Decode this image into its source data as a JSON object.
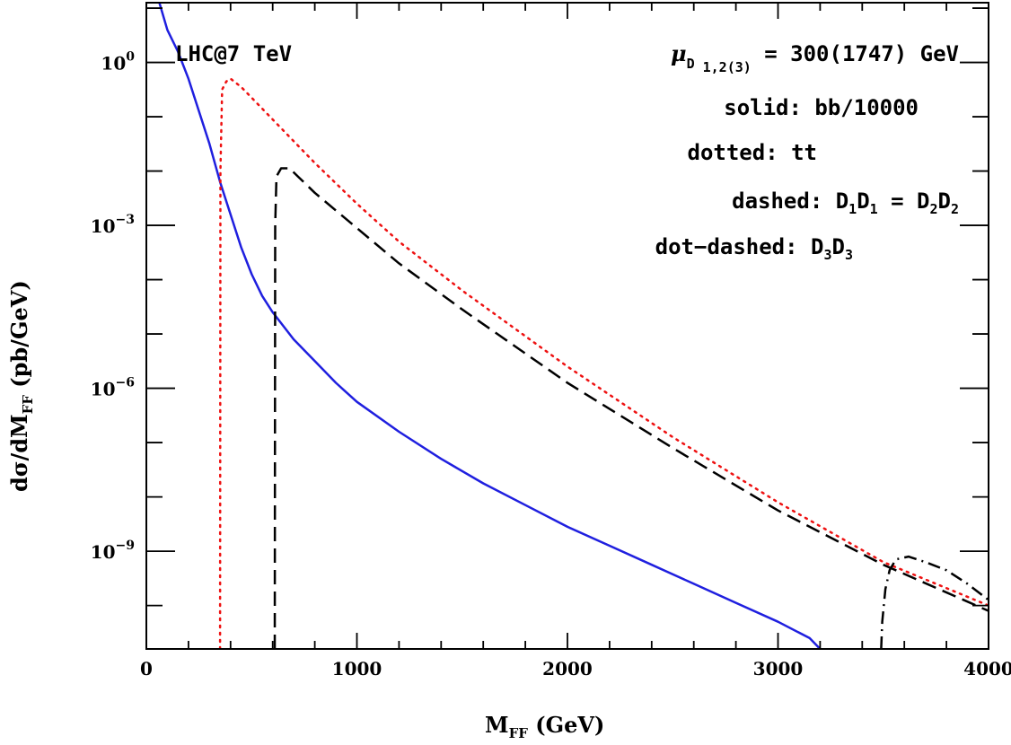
{
  "chart_data": {
    "type": "line",
    "xlabel_main": "M",
    "xlabel_sub": "FF",
    "xlabel_rest": " (GeV)",
    "ylabel_pre": "dσ/dM",
    "ylabel_sub": "FF",
    "ylabel_rest": " (pb/GeV)",
    "xlim": [
      0,
      4000
    ],
    "ylim_log10": [
      -10.8,
      1.1
    ],
    "x_ticks": [
      0,
      1000,
      2000,
      3000,
      4000
    ],
    "x_tick_labels": [
      "0",
      "1000",
      "2000",
      "3000",
      "4000"
    ],
    "y_ticks": [
      {
        "base": "10",
        "exp": "0",
        "log": 0
      },
      {
        "base": "10",
        "exp": "−3",
        "log": -3
      },
      {
        "base": "10",
        "exp": "−6",
        "log": -6
      },
      {
        "base": "10",
        "exp": "−9",
        "log": -9
      }
    ],
    "annotations": {
      "lhc": "LHC@7 TeV",
      "mu_symbol": "μ",
      "mu_sub_d": "D",
      "mu_sub_idx": " 1,2(3)",
      "mu_value": " = 300(1747) GeV",
      "solid": "solid: bb/10000",
      "dotted": "dotted: tt",
      "dashed_pre": "dashed: D",
      "dashed_s1": "1",
      "dashed_mid": "D",
      "dashed_s2": "1",
      "dashed_eq": " = D",
      "dashed_s3": "2",
      "dashed_mid2": "D",
      "dashed_s4": "2",
      "dotdashed_pre": "dot−dashed: D",
      "dotdashed_s1": "3",
      "dotdashed_mid": "D",
      "dotdashed_s2": "3"
    },
    "series": [
      {
        "style": "solid",
        "color": "#1f1fdf",
        "points": [
          [
            62,
            1.1
          ],
          [
            100,
            0.6
          ],
          [
            150,
            0.2
          ],
          [
            200,
            -0.3
          ],
          [
            250,
            -0.9
          ],
          [
            300,
            -1.5
          ],
          [
            350,
            -2.2
          ],
          [
            400,
            -2.8
          ],
          [
            450,
            -3.4
          ],
          [
            500,
            -3.9
          ],
          [
            550,
            -4.3
          ],
          [
            600,
            -4.6
          ],
          [
            650,
            -4.85
          ],
          [
            700,
            -5.1
          ],
          [
            800,
            -5.5
          ],
          [
            900,
            -5.9
          ],
          [
            1000,
            -6.25
          ],
          [
            1200,
            -6.8
          ],
          [
            1400,
            -7.3
          ],
          [
            1600,
            -7.75
          ],
          [
            1800,
            -8.15
          ],
          [
            2000,
            -8.55
          ],
          [
            2200,
            -8.9
          ],
          [
            2400,
            -9.25
          ],
          [
            2600,
            -9.6
          ],
          [
            2800,
            -9.95
          ],
          [
            3000,
            -10.3
          ],
          [
            3150,
            -10.6
          ],
          [
            3200,
            -10.8
          ]
        ]
      },
      {
        "style": "dotted",
        "color": "#ee1111",
        "points": [
          [
            350,
            -10.8
          ],
          [
            352,
            -2.0
          ],
          [
            360,
            -0.5
          ],
          [
            380,
            -0.35
          ],
          [
            400,
            -0.3
          ],
          [
            450,
            -0.45
          ],
          [
            500,
            -0.65
          ],
          [
            600,
            -1.05
          ],
          [
            700,
            -1.45
          ],
          [
            800,
            -1.85
          ],
          [
            1000,
            -2.6
          ],
          [
            1200,
            -3.3
          ],
          [
            1500,
            -4.2
          ],
          [
            2000,
            -5.6
          ],
          [
            2500,
            -6.9
          ],
          [
            3000,
            -8.1
          ],
          [
            3500,
            -9.2
          ],
          [
            4000,
            -10.0
          ]
        ]
      },
      {
        "style": "dashed",
        "color": "#000000",
        "points": [
          [
            610,
            -10.8
          ],
          [
            612,
            -3.0
          ],
          [
            618,
            -2.1
          ],
          [
            640,
            -1.95
          ],
          [
            680,
            -1.95
          ],
          [
            720,
            -2.1
          ],
          [
            800,
            -2.4
          ],
          [
            1000,
            -3.05
          ],
          [
            1200,
            -3.7
          ],
          [
            1500,
            -4.55
          ],
          [
            2000,
            -5.9
          ],
          [
            2500,
            -7.1
          ],
          [
            3000,
            -8.25
          ],
          [
            3500,
            -9.25
          ],
          [
            4000,
            -10.1
          ]
        ]
      },
      {
        "style": "dotdashed",
        "color": "#000000",
        "points": [
          [
            3490,
            -10.8
          ],
          [
            3495,
            -10.3
          ],
          [
            3510,
            -9.7
          ],
          [
            3530,
            -9.35
          ],
          [
            3560,
            -9.15
          ],
          [
            3620,
            -9.1
          ],
          [
            3700,
            -9.2
          ],
          [
            3800,
            -9.35
          ],
          [
            3900,
            -9.6
          ],
          [
            4000,
            -9.9
          ]
        ]
      }
    ]
  }
}
